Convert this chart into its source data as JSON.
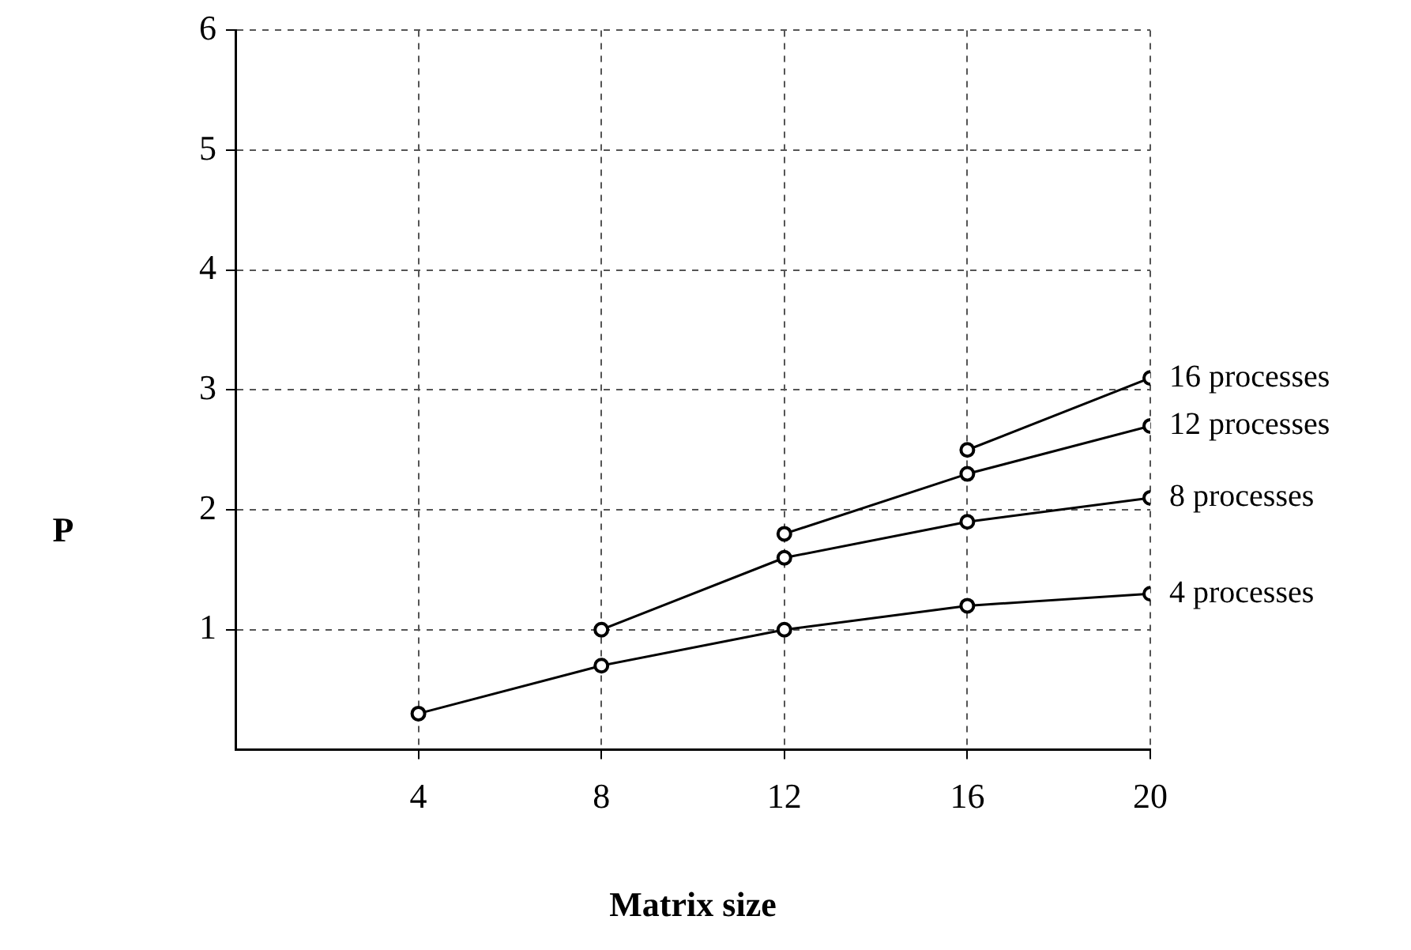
{
  "chart_data": {
    "type": "line",
    "xlabel": "Matrix size",
    "ylabel": "P",
    "xlim": [
      0,
      20
    ],
    "xticks": [
      4,
      8,
      12,
      16,
      20
    ],
    "ylim": [
      0,
      6
    ],
    "yticks": [
      1,
      2,
      3,
      4,
      5,
      6
    ],
    "grid": true,
    "legend": false,
    "marker": "circle",
    "line_style": "solid",
    "series": [
      {
        "name": "16 processes",
        "color": "#000000",
        "x": [
          16,
          20
        ],
        "values": [
          2.5,
          3.1
        ]
      },
      {
        "name": "12 processes",
        "color": "#000000",
        "x": [
          12,
          16,
          20
        ],
        "values": [
          1.8,
          2.3,
          2.7
        ]
      },
      {
        "name": "8 processes",
        "color": "#000000",
        "x": [
          8,
          12,
          16,
          20
        ],
        "values": [
          1.0,
          1.6,
          1.9,
          2.1
        ]
      },
      {
        "name": "4 processes",
        "color": "#000000",
        "x": [
          4,
          8,
          12,
          16,
          20
        ],
        "values": [
          0.3,
          0.7,
          1.0,
          1.2,
          1.3
        ]
      }
    ]
  }
}
